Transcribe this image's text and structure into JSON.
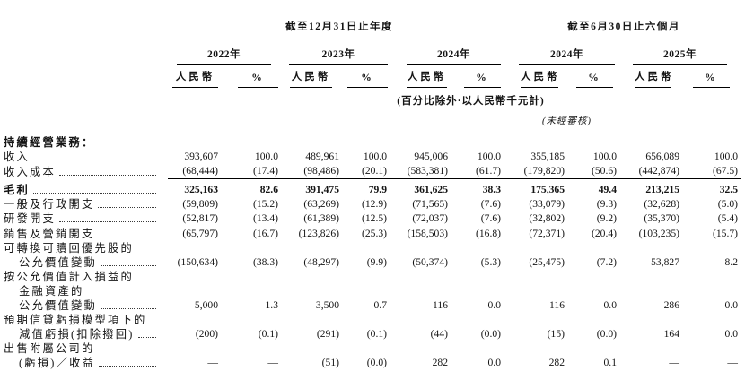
{
  "page": {
    "background": "#ffffff",
    "text_color": "#141414"
  },
  "table": {
    "col_groups": [
      {
        "title": "截至12月31日止年度",
        "years": [
          "2022年",
          "2023年",
          "2024年"
        ]
      },
      {
        "title": "截至6月30日止六個月",
        "years": [
          "2024年",
          "2025年"
        ]
      }
    ],
    "currency_label": "人民幣",
    "percent_label": "%",
    "units_note": "(百分比除外·以人民幣千元計)",
    "unaudited_note": "(未經審核)",
    "rows": [
      {
        "label": "持續經營業務：",
        "bold": true,
        "indent": 0,
        "leader": false,
        "values": null
      },
      {
        "label": "收入",
        "indent": 0,
        "leader": true,
        "values": [
          "393,607",
          "100.0",
          "489,961",
          "100.0",
          "945,006",
          "100.0",
          "355,185",
          "100.0",
          "656,089",
          "100.0"
        ]
      },
      {
        "label": "收入成本",
        "indent": 0,
        "leader": true,
        "rule": true,
        "values": [
          "(68,444)",
          "(17.4)",
          "(98,486)",
          "(20.1)",
          "(583,381)",
          "(61.7)",
          "(179,820)",
          "(50.6)",
          "(442,874)",
          "(67.5)"
        ]
      },
      {
        "label": "毛利",
        "bold": true,
        "gap": true,
        "indent": 0,
        "leader": true,
        "values": [
          "325,163",
          "82.6",
          "391,475",
          "79.9",
          "361,625",
          "38.3",
          "175,365",
          "49.4",
          "213,215",
          "32.5"
        ]
      },
      {
        "label": "一般及行政開支",
        "indent": 0,
        "leader": true,
        "values": [
          "(59,809)",
          "(15.2)",
          "(63,269)",
          "(12.9)",
          "(71,565)",
          "(7.6)",
          "(33,079)",
          "(9.3)",
          "(32,628)",
          "(5.0)"
        ]
      },
      {
        "label": "研發開支",
        "indent": 0,
        "leader": true,
        "values": [
          "(52,817)",
          "(13.4)",
          "(61,389)",
          "(12.5)",
          "(72,037)",
          "(7.6)",
          "(32,802)",
          "(9.2)",
          "(35,370)",
          "(5.4)"
        ]
      },
      {
        "label": "銷售及營銷開支",
        "indent": 0,
        "leader": true,
        "values": [
          "(65,797)",
          "(16.7)",
          "(123,826)",
          "(25.3)",
          "(158,503)",
          "(16.8)",
          "(72,371)",
          "(20.4)",
          "(103,235)",
          "(15.7)"
        ]
      },
      {
        "label": "可轉換可贖回優先股的",
        "indent": 0,
        "leader": false,
        "values": null
      },
      {
        "label": "公允價值變動",
        "indent": 1,
        "leader": true,
        "values": [
          "(150,634)",
          "(38.3)",
          "(48,297)",
          "(9.9)",
          "(50,374)",
          "(5.3)",
          "(25,475)",
          "(7.2)",
          "53,827",
          "8.2"
        ]
      },
      {
        "label": "按公允價值計入損益的",
        "indent": 0,
        "leader": false,
        "values": null
      },
      {
        "label": "金融資產的",
        "indent": 1,
        "leader": false,
        "values": null
      },
      {
        "label": "公允價值變動",
        "indent": 1,
        "leader": true,
        "values": [
          "5,000",
          "1.3",
          "3,500",
          "0.7",
          "116",
          "0.0",
          "116",
          "0.0",
          "286",
          "0.0"
        ]
      },
      {
        "label": "預期信貸虧損模型項下的",
        "indent": 0,
        "leader": false,
        "values": null
      },
      {
        "label": "減值虧損(扣除撥回)",
        "indent": 1,
        "leader": true,
        "values": [
          "(200)",
          "(0.1)",
          "(291)",
          "(0.1)",
          "(44)",
          "(0.0)",
          "(15)",
          "(0.0)",
          "164",
          "0.0"
        ]
      },
      {
        "label": "出售附屬公司的",
        "indent": 0,
        "leader": false,
        "values": null
      },
      {
        "label": "(虧損)／收益",
        "indent": 1,
        "leader": true,
        "values": [
          "—",
          "—",
          "(51)",
          "(0.0)",
          "282",
          "0.0",
          "282",
          "0.1",
          "—",
          "—"
        ]
      }
    ]
  }
}
